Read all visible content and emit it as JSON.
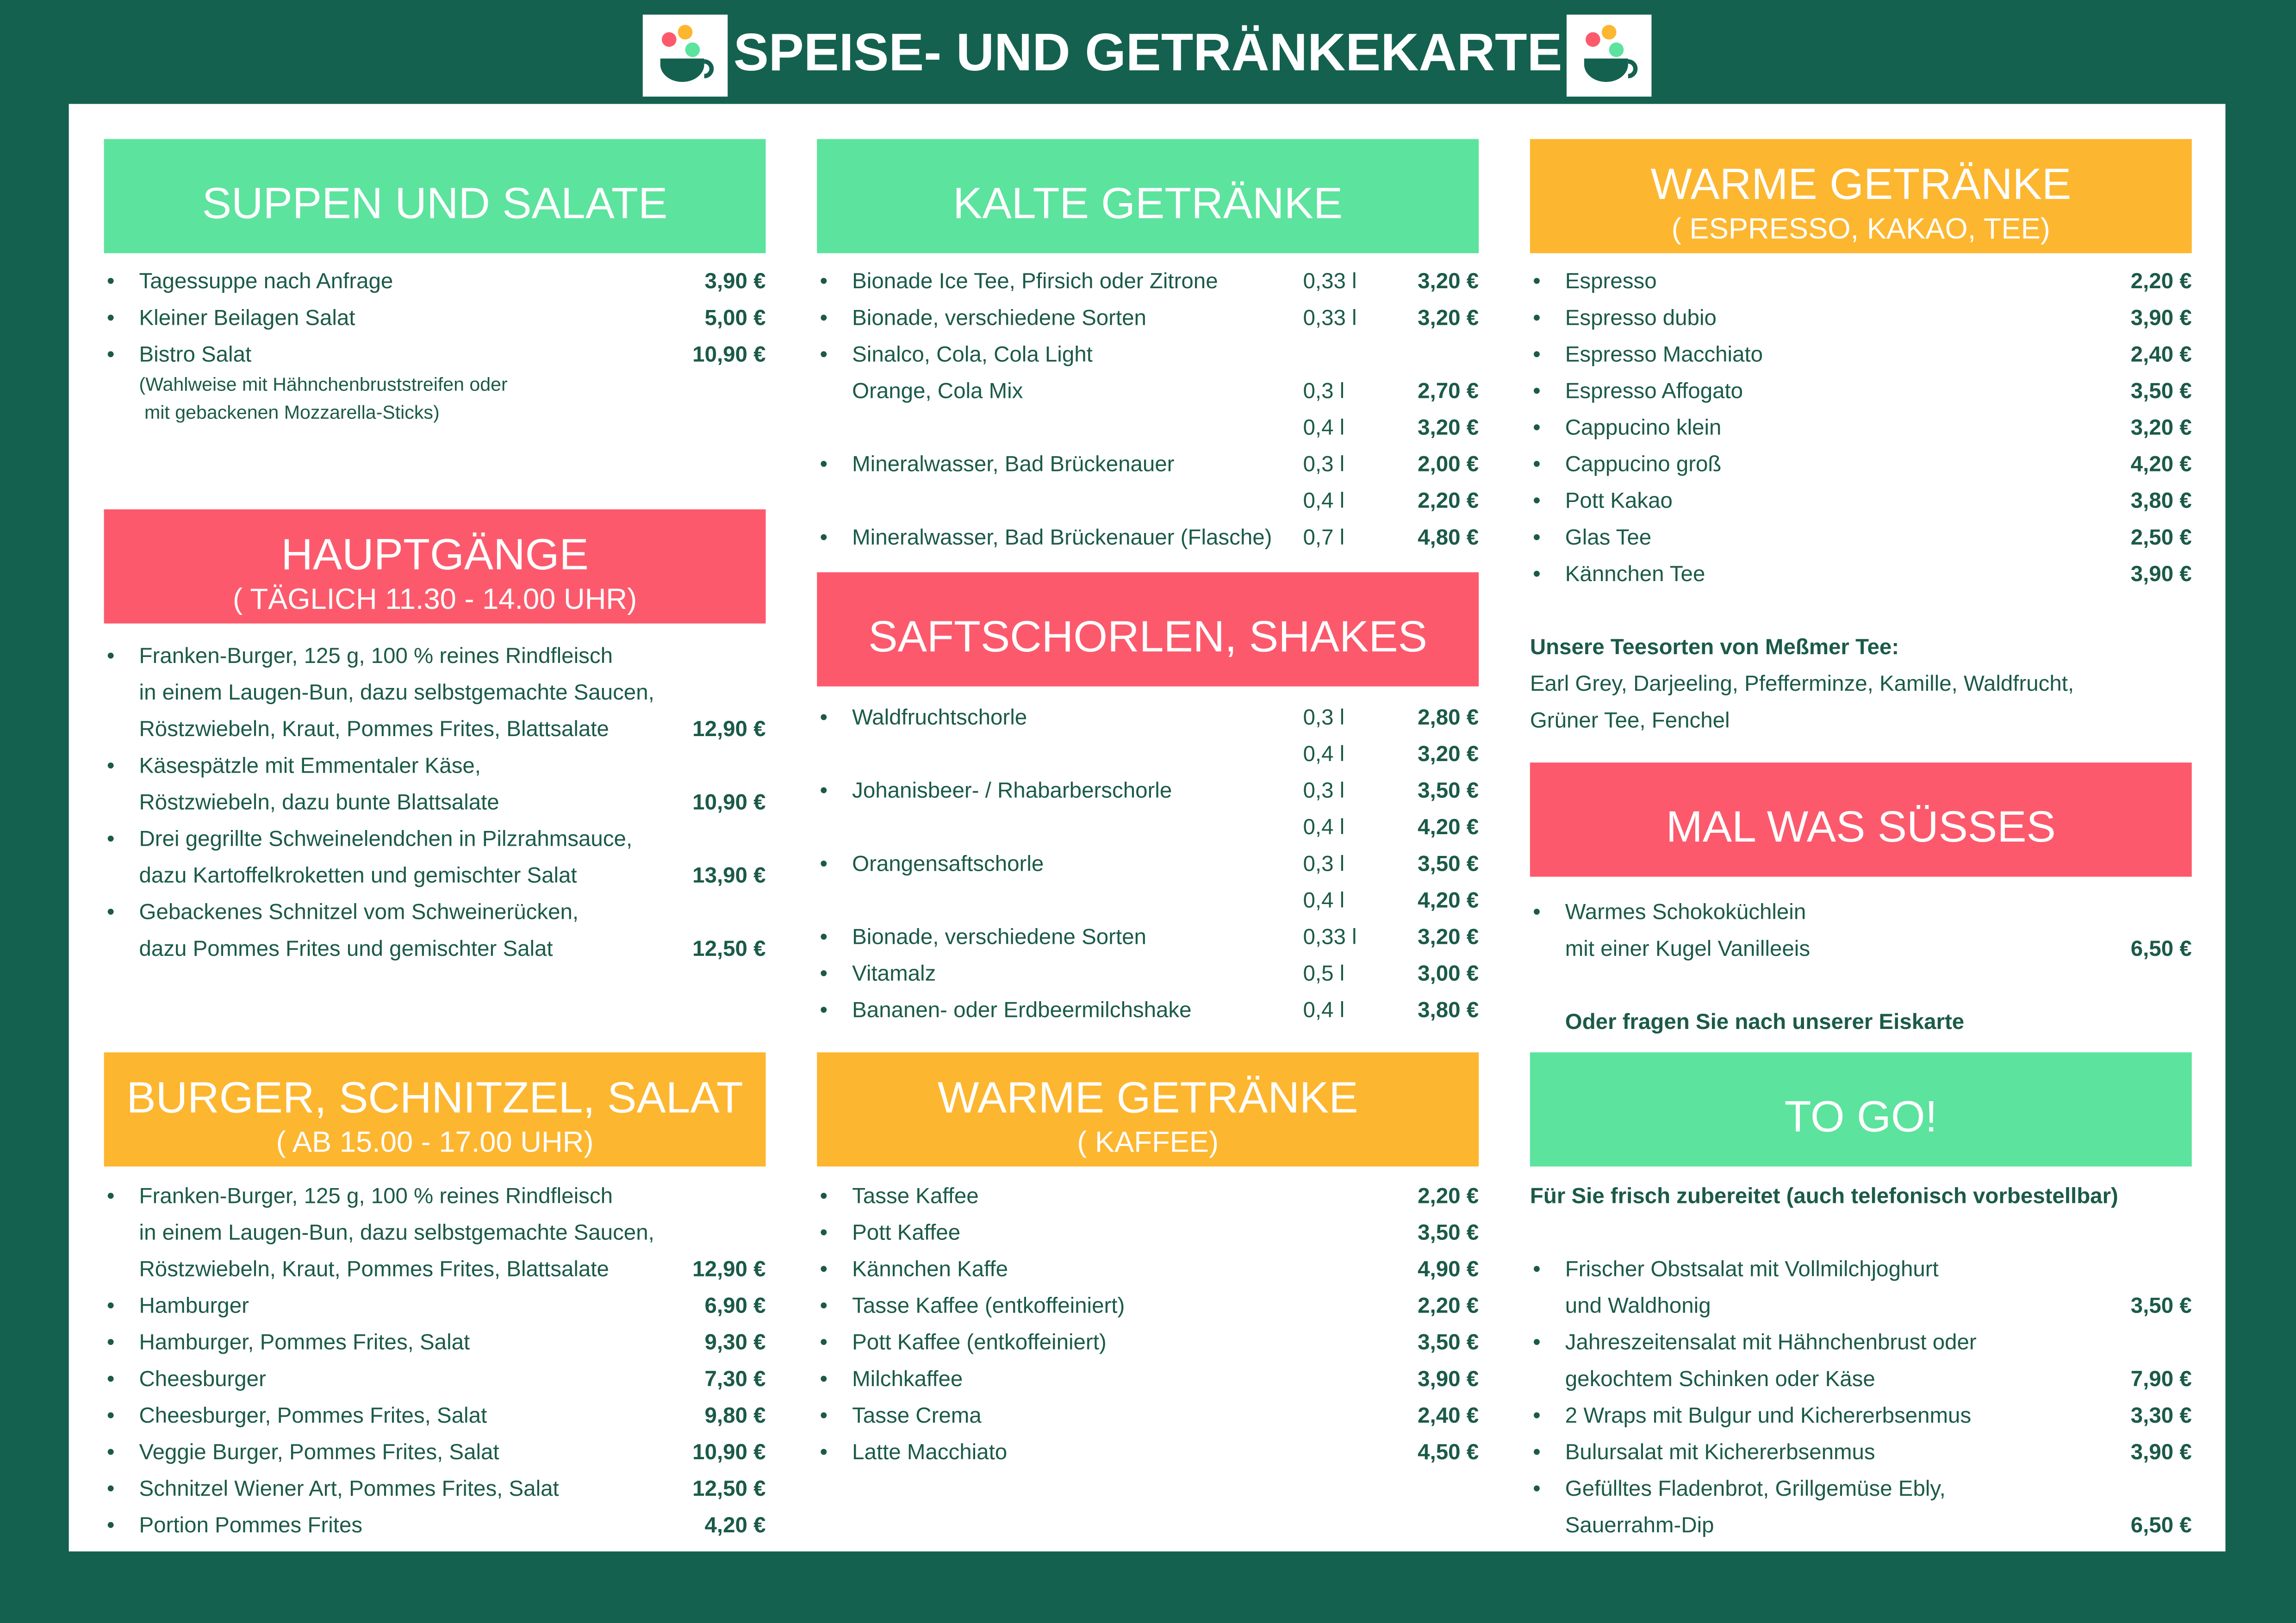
{
  "header": {
    "title": "SPEISE- UND GETRÄNKEKARTE"
  },
  "columns": [
    {
      "sections": [
        {
          "title": "SUPPEN UND SALATE",
          "items": [
            {
              "lines": [
                "Tagessuppe nach Anfrage"
              ],
              "sizes": [
                {
                  "price": "3,90 €"
                }
              ]
            },
            {
              "lines": [
                "Kleiner Beilagen Salat"
              ],
              "sizes": [
                {
                  "price": "5,00 €"
                }
              ]
            },
            {
              "lines": [
                "Bistro Salat"
              ],
              "sizes": [
                {
                  "price": "10,90 €"
                }
              ],
              "note": [
                "(Wahlweise mit Hähnchenbruststreifen oder",
                " mit gebackenen Mozzarella-Sticks)"
              ]
            }
          ]
        },
        {
          "title": "HAUPTGÄNGE",
          "subtitle": "( TÄGLICH 11.30 - 14.00 UHR)",
          "items": [
            {
              "lines": [
                "Franken-Burger, 125 g, 100 % reines Rindfleisch",
                "in einem Laugen-Bun, dazu selbstgemachte Saucen,",
                "Röstzwiebeln, Kraut, Pommes Frites, Blattsalate"
              ],
              "sizes": [
                {
                  "price": "12,90 €"
                }
              ]
            },
            {
              "lines": [
                "Käsespätzle mit Emmentaler Käse,",
                "Röstzwiebeln, dazu bunte Blattsalate"
              ],
              "sizes": [
                {
                  "price": "10,90 €"
                }
              ]
            },
            {
              "lines": [
                "Drei gegrillte Schweinelendchen in Pilzrahmsauce,",
                "dazu Kartoffelkroketten und gemischter Salat"
              ],
              "sizes": [
                {
                  "price": "13,90 €"
                }
              ]
            },
            {
              "lines": [
                "Gebackenes Schnitzel vom Schweinerücken,",
                "dazu Pommes Frites und gemischter Salat"
              ],
              "sizes": [
                {
                  "price": "12,50 €"
                }
              ]
            }
          ]
        },
        {
          "title": "BURGER, SCHNITZEL, SALAT",
          "subtitle": "( AB 15.00 - 17.00 UHR)",
          "items": [
            {
              "lines": [
                "Franken-Burger, 125 g, 100 % reines Rindfleisch",
                "in einem Laugen-Bun, dazu selbstgemachte Saucen,",
                "Röstzwiebeln, Kraut, Pommes Frites, Blattsalate"
              ],
              "sizes": [
                {
                  "price": "12,90 €"
                }
              ]
            },
            {
              "lines": [
                "Hamburger"
              ],
              "sizes": [
                {
                  "price": "6,90 €"
                }
              ]
            },
            {
              "lines": [
                "Hamburger, Pommes Frites, Salat"
              ],
              "sizes": [
                {
                  "price": "9,30 €"
                }
              ]
            },
            {
              "lines": [
                "Cheesburger"
              ],
              "sizes": [
                {
                  "price": "7,30 €"
                }
              ]
            },
            {
              "lines": [
                "Cheesburger, Pommes Frites, Salat"
              ],
              "sizes": [
                {
                  "price": "9,80 €"
                }
              ]
            },
            {
              "lines": [
                "Veggie Burger, Pommes Frites, Salat"
              ],
              "sizes": [
                {
                  "price": "10,90 €"
                }
              ]
            },
            {
              "lines": [
                "Schnitzel Wiener Art, Pommes Frites, Salat"
              ],
              "sizes": [
                {
                  "price": "12,50 €"
                }
              ]
            },
            {
              "lines": [
                "Portion Pommes Frites"
              ],
              "sizes": [
                {
                  "price": "4,20 €"
                }
              ]
            }
          ]
        }
      ]
    },
    {
      "sections": [
        {
          "title": "KALTE GETRÄNKE",
          "items": [
            {
              "lines": [
                "Bionade Ice Tee, Pfirsich oder Zitrone"
              ],
              "sizes": [
                {
                  "volume": "0,33 l",
                  "price": "3,20 €"
                }
              ]
            },
            {
              "lines": [
                "Bionade, verschiedene Sorten"
              ],
              "sizes": [
                {
                  "volume": "0,33 l",
                  "price": "3,20 €"
                }
              ]
            },
            {
              "lines": [
                "Sinalco, Cola, Cola Light",
                "Orange, Cola Mix"
              ],
              "sizes": [
                {
                  "volume": "0,3 l",
                  "price": "2,70 €"
                },
                {
                  "volume": "0,4 l",
                  "price": "3,20 €"
                }
              ]
            },
            {
              "lines": [
                "Mineralwasser, Bad Brückenauer"
              ],
              "sizes": [
                {
                  "volume": "0,3 l",
                  "price": "2,00 €"
                },
                {
                  "volume": "0,4 l",
                  "price": "2,20 €"
                }
              ]
            },
            {
              "lines": [
                "Mineralwasser, Bad Brückenauer (Flasche)"
              ],
              "sizes": [
                {
                  "volume": "0,7 l",
                  "price": "4,80 €"
                }
              ]
            }
          ]
        },
        {
          "title": "SAFTSCHORLEN, SHAKES",
          "items": [
            {
              "lines": [
                "Waldfruchtschorle"
              ],
              "sizes": [
                {
                  "volume": "0,3 l",
                  "price": "2,80 €"
                },
                {
                  "volume": "0,4 l",
                  "price": "3,20 €"
                }
              ]
            },
            {
              "lines": [
                "Johanisbeer- / Rhabarberschorle"
              ],
              "sizes": [
                {
                  "volume": "0,3 l",
                  "price": "3,50 €"
                },
                {
                  "volume": "0,4 l",
                  "price": "4,20 €"
                }
              ]
            },
            {
              "lines": [
                "Orangensaftschorle"
              ],
              "sizes": [
                {
                  "volume": "0,3 l",
                  "price": "3,50 €"
                },
                {
                  "volume": "0,4 l",
                  "price": "4,20 €"
                }
              ]
            },
            {
              "lines": [
                "Bionade, verschiedene Sorten"
              ],
              "sizes": [
                {
                  "volume": "0,33 l",
                  "price": "3,20 €"
                }
              ]
            },
            {
              "lines": [
                "Vitamalz"
              ],
              "sizes": [
                {
                  "volume": "0,5 l",
                  "price": "3,00 €"
                }
              ]
            },
            {
              "lines": [
                "Bananen- oder Erdbeermilchshake"
              ],
              "sizes": [
                {
                  "volume": "0,4 l",
                  "price": "3,80 €"
                }
              ]
            }
          ]
        },
        {
          "title": "WARME GETRÄNKE",
          "subtitle": "( KAFFEE)",
          "items": [
            {
              "lines": [
                "Tasse Kaffee"
              ],
              "sizes": [
                {
                  "price": "2,20 €"
                }
              ]
            },
            {
              "lines": [
                "Pott Kaffee"
              ],
              "sizes": [
                {
                  "price": "3,50 €"
                }
              ]
            },
            {
              "lines": [
                "Kännchen Kaffe"
              ],
              "sizes": [
                {
                  "price": "4,90 €"
                }
              ]
            },
            {
              "lines": [
                "Tasse Kaffee (entkoffeiniert)"
              ],
              "sizes": [
                {
                  "price": "2,20 €"
                }
              ]
            },
            {
              "lines": [
                "Pott Kaffee (entkoffeiniert)"
              ],
              "sizes": [
                {
                  "price": "3,50 €"
                }
              ]
            },
            {
              "lines": [
                "Milchkaffee"
              ],
              "sizes": [
                {
                  "price": "3,90 €"
                }
              ]
            },
            {
              "lines": [
                "Tasse Crema"
              ],
              "sizes": [
                {
                  "price": "2,40 €"
                }
              ]
            },
            {
              "lines": [
                "Latte Macchiato"
              ],
              "sizes": [
                {
                  "price": "4,50 €"
                }
              ]
            }
          ]
        }
      ]
    },
    {
      "sections": [
        {
          "title": "WARME GETRÄNKE",
          "subtitle": "( ESPRESSO, KAKAO, TEE)",
          "items": [
            {
              "lines": [
                "Espresso"
              ],
              "sizes": [
                {
                  "price": "2,20 €"
                }
              ]
            },
            {
              "lines": [
                "Espresso dubio"
              ],
              "sizes": [
                {
                  "price": "3,90 €"
                }
              ]
            },
            {
              "lines": [
                "Espresso Macchiato"
              ],
              "sizes": [
                {
                  "price": "2,40 €"
                }
              ]
            },
            {
              "lines": [
                "Espresso Affogato"
              ],
              "sizes": [
                {
                  "price": "3,50 €"
                }
              ]
            },
            {
              "lines": [
                "Cappucino klein"
              ],
              "sizes": [
                {
                  "price": "3,20 €"
                }
              ]
            },
            {
              "lines": [
                "Cappucino groß"
              ],
              "sizes": [
                {
                  "price": "4,20 €"
                }
              ]
            },
            {
              "lines": [
                "Pott Kakao"
              ],
              "sizes": [
                {
                  "price": "3,80 €"
                }
              ]
            },
            {
              "lines": [
                "Glas Tee"
              ],
              "sizes": [
                {
                  "price": "2,50 €"
                }
              ]
            },
            {
              "lines": [
                "Kännchen Tee"
              ],
              "sizes": [
                {
                  "price": "3,90 €"
                }
              ]
            }
          ],
          "after": {
            "heading": "Unsere Teesorten von Meßmer Tee:",
            "lines": [
              "Earl Grey, Darjeeling, Pfefferminze, Kamille, Waldfrucht,",
              "Grüner Tee, Fenchel"
            ]
          }
        },
        {
          "title": "MAL WAS SÜSSES",
          "items": [
            {
              "lines": [
                "Warmes Schokoküchlein",
                "mit einer Kugel Vanilleeis"
              ],
              "sizes": [
                {
                  "price": "6,50 €"
                }
              ]
            }
          ],
          "after": {
            "heading": "Oder fragen Sie nach unserer Eiskarte"
          }
        },
        {
          "title": "TO GO!",
          "intro": "Für Sie frisch zubereitet (auch telefonisch vorbestellbar)",
          "items": [
            {
              "lines": [
                "Frischer Obstsalat mit Vollmilchjoghurt",
                "und Waldhonig"
              ],
              "sizes": [
                {
                  "price": "3,50 €"
                }
              ]
            },
            {
              "lines": [
                "Jahreszeitensalat mit Hähnchenbrust oder",
                "gekochtem Schinken oder Käse"
              ],
              "sizes": [
                {
                  "price": "7,90 €"
                }
              ]
            },
            {
              "lines": [
                "2 Wraps mit Bulgur und Kichererbsenmus"
              ],
              "sizes": [
                {
                  "price": "3,30 €"
                }
              ]
            },
            {
              "lines": [
                "Bulursalat mit Kichererbsenmus"
              ],
              "sizes": [
                {
                  "price": "3,90 €"
                }
              ]
            },
            {
              "lines": [
                "Gefülltes Fladenbrot, Grillgemüse Ebly,",
                "Sauerrahm-Dip"
              ],
              "sizes": [
                {
                  "price": "6,50 €"
                }
              ]
            }
          ]
        }
      ]
    }
  ]
}
